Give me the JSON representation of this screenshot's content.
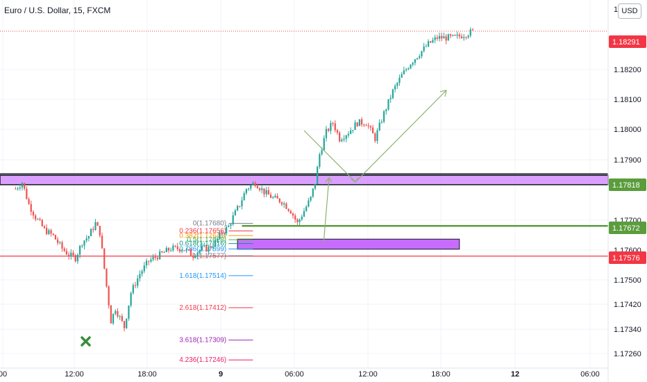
{
  "header": {
    "symbol_title": "Euro / U.S. Dollar, 15, FXCM"
  },
  "currency_button": {
    "label": "USD"
  },
  "colors": {
    "up": "#26a69a",
    "down": "#ef5350",
    "ink": "#131722",
    "support_red": "#f23645",
    "level_green": "#5b9c3c",
    "zone_purple": "#bd52ff",
    "arrow_green": "#8bb26c",
    "fib_0": "#787b86",
    "fib_0236": "#f23645",
    "fib_0382": "#ff9800",
    "fib_05": "#4caf50",
    "fib_0618": "#089981",
    "fib_0786": "#2196f3",
    "fib_1618": "#2196f3",
    "fib_2618": "#f23645",
    "fib_3618": "#9c27b0",
    "fib_4236": "#e91e63",
    "x_marker": "#388e3c"
  },
  "chart_data": {
    "type": "candlestick",
    "symbol": "Euro / U.S. Dollar",
    "interval": "15",
    "source": "FXCM",
    "y_ticks": [
      "1.17260",
      "1.17340",
      "1.17420",
      "1.17500",
      "1.17600",
      "1.17700",
      "1.17900",
      "1.18000",
      "1.18100",
      "1.18200"
    ],
    "y_top_partial": "1.1",
    "x_ticks": [
      "00",
      "12:00",
      "18:00",
      "9",
      "06:00",
      "12:00",
      "18:00",
      "12",
      "06:00"
    ],
    "ylim": [
      1.1722,
      1.1839
    ],
    "last_price": "1.18291",
    "price_tags": [
      {
        "label": "1.18291",
        "color_key": "support_red",
        "kind": "last"
      },
      {
        "label": "1.17818",
        "color_key": "level_green",
        "kind": "level"
      },
      {
        "label": "1.17672",
        "color_key": "level_green",
        "kind": "level"
      },
      {
        "label": "1.17576",
        "color_key": "support_red",
        "kind": "level"
      }
    ],
    "horizontal_levels": [
      {
        "price": 1.17672,
        "color_key": "level_green"
      },
      {
        "price": 1.17576,
        "color_key": "support_red"
      }
    ],
    "zones": [
      {
        "name": "resistance-band",
        "top": 1.17833,
        "bottom": 1.17803,
        "color_key": "zone_purple"
      },
      {
        "name": "demand-box",
        "top": 1.1763,
        "bottom": 1.17598,
        "color_key": "zone_purple"
      }
    ],
    "fib_levels": [
      {
        "label": "0(1.17680)",
        "price": 1.1768,
        "color_key": "fib_0"
      },
      {
        "label": "0.236(1.17656)",
        "price": 1.17656,
        "color_key": "fib_0236"
      },
      {
        "label": "0.382(1.17641)",
        "price": 1.17641,
        "color_key": "fib_0382"
      },
      {
        "label": "0.5(1.17628)",
        "price": 1.17628,
        "color_key": "fib_05"
      },
      {
        "label": "0.618(1.17616)",
        "price": 1.17616,
        "color_key": "fib_0618"
      },
      {
        "label": "0.786(1.17599)",
        "price": 1.17599,
        "color_key": "fib_0786"
      },
      {
        "label": "1(1.17577)",
        "price": 1.17577,
        "color_key": "fib_0"
      },
      {
        "label": "1.618(1.17514)",
        "price": 1.17514,
        "color_key": "fib_1618"
      },
      {
        "label": "2.618(1.17412)",
        "price": 1.17412,
        "color_key": "fib_2618"
      },
      {
        "label": "3.618(1.17309)",
        "price": 1.17309,
        "color_key": "fib_3618"
      },
      {
        "label": "4.236(1.17246)",
        "price": 1.17246,
        "color_key": "fib_4236"
      }
    ],
    "close_path": [
      [
        0,
        1.1779
      ],
      [
        3,
        1.1781
      ],
      [
        6,
        1.1774
      ],
      [
        9,
        1.177
      ],
      [
        13,
        1.1766
      ],
      [
        17,
        1.1764
      ],
      [
        21,
        1.176
      ],
      [
        24,
        1.1758
      ],
      [
        27,
        1.1757
      ],
      [
        30,
        1.1762
      ],
      [
        33,
        1.1764
      ],
      [
        36,
        1.1768
      ],
      [
        38,
        1.1765
      ],
      [
        41,
        1.1748
      ],
      [
        43,
        1.1737
      ],
      [
        45,
        1.1741
      ],
      [
        47,
        1.1738
      ],
      [
        49,
        1.1735
      ],
      [
        52,
        1.1746
      ],
      [
        56,
        1.1752
      ],
      [
        60,
        1.1756
      ],
      [
        65,
        1.1758
      ],
      [
        70,
        1.176
      ],
      [
        75,
        1.176
      ],
      [
        80,
        1.1758
      ],
      [
        84,
        1.176
      ],
      [
        87,
        1.176
      ],
      [
        90,
        1.1762
      ],
      [
        93,
        1.1765
      ],
      [
        96,
        1.1767
      ],
      [
        98,
        1.177
      ],
      [
        101,
        1.1774
      ],
      [
        104,
        1.1779
      ],
      [
        108,
        1.1781
      ],
      [
        112,
        1.1778
      ],
      [
        116,
        1.1776
      ],
      [
        120,
        1.1775
      ],
      [
        124,
        1.1772
      ],
      [
        127,
        1.1768
      ],
      [
        130,
        1.1772
      ],
      [
        133,
        1.1776
      ],
      [
        135,
        1.1781
      ],
      [
        137,
        1.179
      ],
      [
        140,
        1.1797
      ],
      [
        143,
        1.18
      ],
      [
        146,
        1.1795
      ],
      [
        150,
        1.1797
      ],
      [
        154,
        1.18
      ],
      [
        158,
        1.18
      ],
      [
        162,
        1.1795
      ],
      [
        166,
        1.1803
      ],
      [
        170,
        1.181
      ],
      [
        174,
        1.1815
      ],
      [
        178,
        1.1819
      ],
      [
        182,
        1.1822
      ],
      [
        186,
        1.1825
      ],
      [
        190,
        1.1827
      ],
      [
        194,
        1.1827
      ],
      [
        198,
        1.1827
      ],
      [
        202,
        1.1828
      ],
      [
        206,
        1.1829
      ]
    ]
  }
}
